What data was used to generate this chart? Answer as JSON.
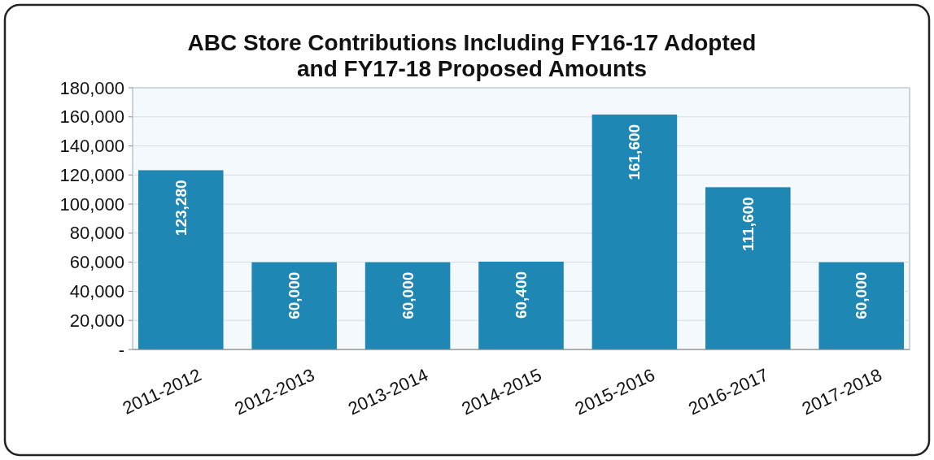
{
  "chart_data": {
    "type": "bar",
    "title": "ABC Store Contributions Including FY16-17 Adopted\nand FY17-18 Proposed Amounts",
    "categories": [
      "2011-2012",
      "2012-2013",
      "2013-2014",
      "2014-2015",
      "2015-2016",
      "2016-2017",
      "2017-2018"
    ],
    "values": [
      123280,
      60000,
      60000,
      60400,
      161600,
      111600,
      60000
    ],
    "color": "#1f87b3",
    "ylim": [
      0,
      180000
    ],
    "yticks": [
      {
        "value": 0,
        "label": "-"
      },
      {
        "value": 20000,
        "label": "20,000"
      },
      {
        "value": 40000,
        "label": "40,000"
      },
      {
        "value": 60000,
        "label": "60,000"
      },
      {
        "value": 80000,
        "label": "80,000"
      },
      {
        "value": 100000,
        "label": "100,000"
      },
      {
        "value": 120000,
        "label": "120,000"
      },
      {
        "value": 140000,
        "label": "140,000"
      },
      {
        "value": 160000,
        "label": "160,000"
      },
      {
        "value": 180000,
        "label": "180,000"
      }
    ],
    "value_labels": [
      "123,280",
      "60,000",
      "60,000",
      "60,400",
      "161,600",
      "111,600",
      "60,000"
    ],
    "grid": "y"
  }
}
